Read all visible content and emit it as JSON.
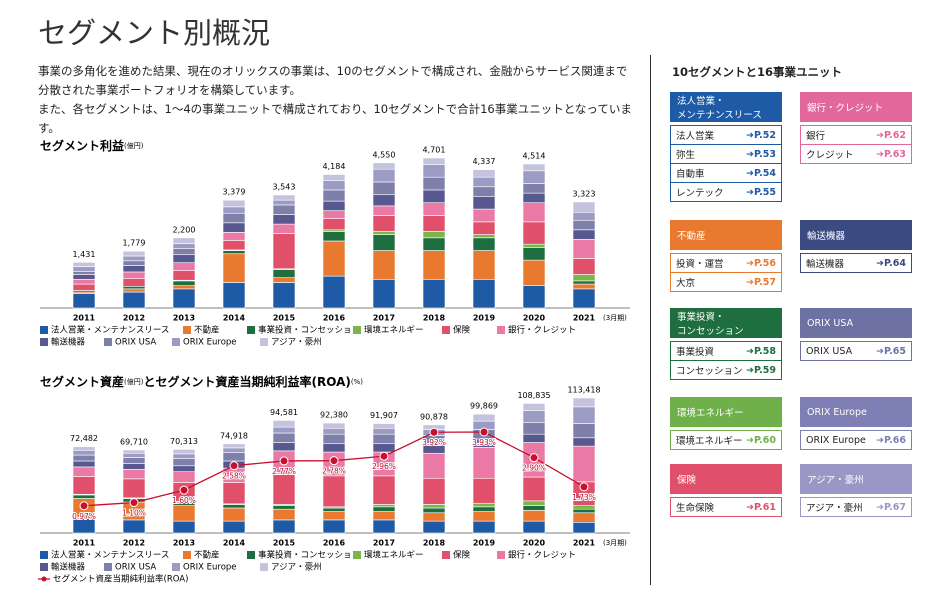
{
  "title": "セグメント別概況",
  "intro": [
    "事業の多角化を進めた結果、現在のオリックスの事業は、10のセグメントで構成され、金融からサービス関連まで分散された事業ポートフォリオを構築しています。",
    "また、各セグメントは、1～4の事業ユニットで構成されており、10セグメントで合計16事業ユニットとなっています。"
  ],
  "chart_data": [
    {
      "type": "bar",
      "stacked": true,
      "title": "セグメント利益",
      "title_unit": "(億円)",
      "period_note": "(3月期)",
      "categories": [
        "2011",
        "2012",
        "2013",
        "2014",
        "2015",
        "2016",
        "2017",
        "2018",
        "2019",
        "2020",
        "2021"
      ],
      "totals": [
        1431,
        1779,
        2200,
        3379,
        3543,
        4184,
        4550,
        4701,
        4337,
        4514,
        3323
      ],
      "total_labels": [
        "1,431",
        "1,779",
        "2,200",
        "3,379",
        "3,543",
        "4,184",
        "4,550",
        "4,701",
        "4,337",
        "4,514",
        "3,323"
      ],
      "series": [
        {
          "name": "法人営業・メンテナンスリース",
          "color": "#1f5aa6",
          "values": [
            450,
            500,
            600,
            800,
            800,
            1000,
            900,
            900,
            900,
            700,
            600
          ]
        },
        {
          "name": "不動産",
          "color": "#e8792f",
          "values": [
            50,
            100,
            100,
            900,
            150,
            1100,
            900,
            900,
            900,
            800,
            150
          ]
        },
        {
          "name": "事業投資・コンセッション",
          "color": "#1f6e3f",
          "values": [
            50,
            80,
            150,
            100,
            250,
            300,
            500,
            400,
            400,
            400,
            100
          ]
        },
        {
          "name": "環境エネルギー",
          "color": "#7ab648",
          "values": [
            0,
            0,
            20,
            20,
            30,
            50,
            100,
            200,
            100,
            100,
            200
          ]
        },
        {
          "name": "保険",
          "color": "#e0506a",
          "values": [
            200,
            250,
            300,
            300,
            1100,
            350,
            500,
            500,
            400,
            700,
            500
          ]
        },
        {
          "name": "銀行・クレジット",
          "color": "#ea7aa5",
          "values": [
            150,
            200,
            250,
            250,
            300,
            250,
            300,
            400,
            400,
            600,
            600
          ]
        },
        {
          "name": "輸送機器",
          "color": "#56588f",
          "values": [
            150,
            200,
            250,
            300,
            300,
            300,
            350,
            400,
            400,
            300,
            300
          ]
        },
        {
          "name": "ORIX USA",
          "color": "#7e80aa",
          "values": [
            100,
            150,
            200,
            300,
            300,
            350,
            400,
            400,
            300,
            300,
            300
          ]
        },
        {
          "name": "ORIX Europe",
          "color": "#9b9bc4",
          "values": [
            150,
            150,
            150,
            200,
            150,
            300,
            400,
            400,
            300,
            400,
            250
          ]
        },
        {
          "name": "アジア・豪州",
          "color": "#c5c2de",
          "values": [
            131,
            149,
            180,
            209,
            163,
            184,
            200,
            201,
            237,
            214,
            323
          ]
        }
      ]
    },
    {
      "type": "bar",
      "stacked": true,
      "title": "セグメント資産",
      "title_unit": "(億円)",
      "title_rest": "とセグメント資産当期純利益率(ROA)",
      "title_rest_unit": "(%)",
      "period_note": "(3月期)",
      "categories": [
        "2011",
        "2012",
        "2013",
        "2014",
        "2015",
        "2016",
        "2017",
        "2018",
        "2019",
        "2020",
        "2021"
      ],
      "totals": [
        72482,
        69710,
        70313,
        74918,
        94581,
        92380,
        91907,
        90878,
        99869,
        108835,
        113418
      ],
      "total_labels": [
        "72,482",
        "69,710",
        "70,313",
        "74,918",
        "94,581",
        "92,380",
        "91,907",
        "90,878",
        "99,869",
        "108,835",
        "113,418"
      ],
      "series": [
        {
          "name": "法人営業・メンテナンスリース",
          "color": "#1f5aa6",
          "values": [
            12000,
            11000,
            10000,
            10000,
            11000,
            11000,
            11000,
            10000,
            10000,
            10000,
            9000
          ]
        },
        {
          "name": "不動産",
          "color": "#e8792f",
          "values": [
            17000,
            15000,
            13000,
            11000,
            9000,
            7000,
            7000,
            7000,
            8000,
            9000,
            8000
          ]
        },
        {
          "name": "事業投資・コンセッション",
          "color": "#1f6e3f",
          "values": [
            3000,
            3000,
            3000,
            3000,
            3000,
            3000,
            4000,
            4000,
            4000,
            4000,
            3000
          ]
        },
        {
          "name": "環境エネルギー",
          "color": "#7ab648",
          "values": [
            500,
            500,
            500,
            500,
            1000,
            1000,
            2000,
            3000,
            3000,
            4000,
            3000
          ]
        },
        {
          "name": "保険",
          "color": "#e0506a",
          "values": [
            15000,
            16000,
            16000,
            18000,
            25000,
            26000,
            24000,
            22000,
            21000,
            20000,
            20000
          ]
        },
        {
          "name": "銀行・クレジット",
          "color": "#ea7aa5",
          "values": [
            8000,
            8000,
            9000,
            12000,
            20000,
            20000,
            20000,
            21000,
            26000,
            29000,
            30000
          ]
        },
        {
          "name": "輸送機器",
          "color": "#56588f",
          "values": [
            5000,
            5000,
            5000,
            6000,
            7000,
            7000,
            7000,
            7000,
            7000,
            7000,
            7000
          ]
        },
        {
          "name": "ORIX USA",
          "color": "#7e80aa",
          "values": [
            5000,
            5000,
            6000,
            7000,
            8000,
            8000,
            8000,
            8000,
            8000,
            10000,
            12000
          ]
        },
        {
          "name": "ORIX Europe",
          "color": "#9b9bc4",
          "values": [
            4000,
            3500,
            4000,
            4000,
            5000,
            5000,
            5000,
            5000,
            7000,
            10000,
            14000
          ]
        },
        {
          "name": "アジア・豪州",
          "color": "#c5c2de",
          "values": [
            2982,
            2710,
            3813,
            3418,
            5581,
            4380,
            3907,
            3878,
            5869,
            5835,
            7418
          ]
        }
      ],
      "line": {
        "name": "セグメント資産当期純利益率(ROA)",
        "color": "#c8102e",
        "values": [
          0.97,
          1.1,
          1.6,
          2.58,
          2.77,
          2.78,
          2.96,
          3.92,
          3.93,
          2.9,
          1.73
        ],
        "value_labels": [
          "0.97%",
          "1.10%",
          "1.60%",
          "2.58%",
          "2.77%",
          "2.78%",
          "2.96%",
          "3.92%",
          "3.93%",
          "2.90%",
          "1.73%"
        ]
      }
    }
  ],
  "units": {
    "title": "10セグメントと16事業ユニット",
    "groups": [
      {
        "name_lines": [
          "法人営業・",
          "メンテナンスリース"
        ],
        "color": "#1f5aa6",
        "items": [
          {
            "label": "法人営業",
            "page": "P.52"
          },
          {
            "label": "弥生",
            "page": "P.53"
          },
          {
            "label": "自動車",
            "page": "P.54"
          },
          {
            "label": "レンテック",
            "page": "P.55"
          }
        ]
      },
      {
        "name_lines": [
          "銀行・クレジット"
        ],
        "color": "#e2679a",
        "items": [
          {
            "label": "銀行",
            "page": "P.62"
          },
          {
            "label": "クレジット",
            "page": "P.63"
          }
        ]
      },
      {
        "name_lines": [
          "不動産"
        ],
        "color": "#e8792f",
        "items": [
          {
            "label": "投資・運営",
            "page": "P.56"
          },
          {
            "label": "大京",
            "page": "P.57"
          }
        ]
      },
      {
        "name_lines": [
          "輸送機器"
        ],
        "color": "#3c4a82",
        "items": [
          {
            "label": "輸送機器",
            "page": "P.64"
          }
        ]
      },
      {
        "name_lines": [
          "事業投資・",
          "コンセッション"
        ],
        "color": "#1f6e3f",
        "items": [
          {
            "label": "事業投資",
            "page": "P.58"
          },
          {
            "label": "コンセッション",
            "page": "P.59"
          }
        ]
      },
      {
        "name_lines": [
          "ORIX USA"
        ],
        "color": "#6e72a3",
        "items": [
          {
            "label": "ORIX USA",
            "page": "P.65"
          }
        ]
      },
      {
        "name_lines": [
          "環境エネルギー"
        ],
        "color": "#6fb04a",
        "items": [
          {
            "label": "環境エネルギー",
            "page": "P.60"
          }
        ]
      },
      {
        "name_lines": [
          "ORIX Europe"
        ],
        "color": "#7e7fb5",
        "items": [
          {
            "label": "ORIX Europe",
            "page": "P.66"
          }
        ]
      },
      {
        "name_lines": [
          "保険"
        ],
        "color": "#e0506a",
        "items": [
          {
            "label": "生命保険",
            "page": "P.61"
          }
        ]
      },
      {
        "name_lines": [
          "アジア・豪州"
        ],
        "color": "#9a96c6",
        "items": [
          {
            "label": "アジア・豪州",
            "page": "P.67"
          }
        ]
      }
    ]
  }
}
